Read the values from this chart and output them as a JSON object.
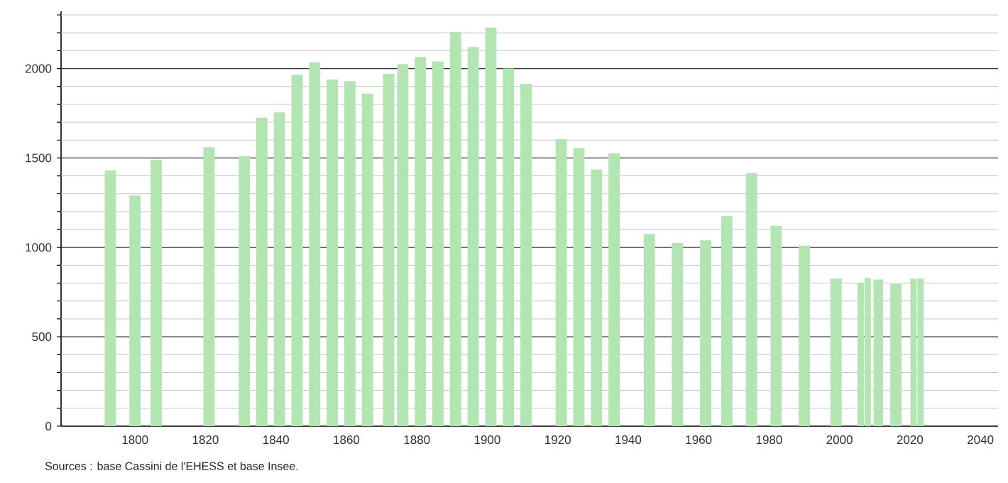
{
  "chart_data": {
    "type": "bar",
    "color": "#b3e5b3",
    "x": [
      1793,
      1800,
      1806,
      1821,
      1831,
      1836,
      1841,
      1846,
      1851,
      1856,
      1861,
      1866,
      1872,
      1876,
      1881,
      1886,
      1891,
      1896,
      1901,
      1906,
      1911,
      1921,
      1926,
      1931,
      1936,
      1946,
      1954,
      1962,
      1968,
      1975,
      1982,
      1990,
      1999,
      2006,
      2008,
      2011,
      2016,
      2021,
      2023
    ],
    "values": [
      1430,
      1290,
      1490,
      1560,
      1510,
      1725,
      1755,
      1965,
      2035,
      1940,
      1930,
      1860,
      1970,
      2025,
      2065,
      2040,
      2205,
      2120,
      2230,
      2000,
      1915,
      1605,
      1555,
      1435,
      1525,
      1075,
      1025,
      1040,
      1175,
      1415,
      1120,
      1010,
      825,
      800,
      830,
      820,
      795,
      825,
      825
    ],
    "xlim": [
      1779,
      2045
    ],
    "ylim": [
      0,
      2320
    ],
    "xticks": [
      1800,
      1820,
      1840,
      1860,
      1880,
      1900,
      1920,
      1940,
      1960,
      1980,
      2000,
      2020,
      2040
    ],
    "yticks": [
      0,
      {
        "value": 100,
        "label": null
      },
      {
        "value": 200,
        "label": null
      },
      {
        "value": 300,
        "label": null
      },
      {
        "value": 400,
        "label": null
      },
      500,
      {
        "value": 600,
        "label": null
      },
      {
        "value": 700,
        "label": null
      },
      {
        "value": 800,
        "label": null
      },
      {
        "value": 900,
        "label": null
      },
      1000,
      {
        "value": 1100,
        "label": null
      },
      {
        "value": 1200,
        "label": null
      },
      {
        "value": 1300,
        "label": null
      },
      {
        "value": 1400,
        "label": null
      },
      1500,
      {
        "value": 1600,
        "label": null
      },
      {
        "value": 1700,
        "label": null
      },
      {
        "value": 1800,
        "label": null
      },
      {
        "value": 1900,
        "label": null
      },
      2000,
      {
        "value": 2100,
        "label": null
      },
      {
        "value": 2200,
        "label": null
      },
      {
        "value": 2300,
        "label": null
      }
    ],
    "grid": "y",
    "annotations": [
      "Sources : base Cassini de l'EHESS et base Insee."
    ]
  }
}
